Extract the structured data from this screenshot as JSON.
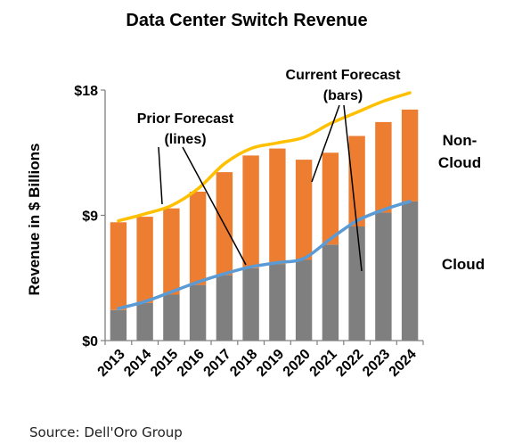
{
  "chart_data": {
    "type": "bar",
    "title": "Data Center Switch Revenue",
    "ylabel": "Revenue in $ Billions",
    "xlabel": "",
    "categories": [
      "2013",
      "2014",
      "2015",
      "2016",
      "2017",
      "2018",
      "2019",
      "2020",
      "2021",
      "2022",
      "2023",
      "2024"
    ],
    "ylim": [
      0,
      18
    ],
    "yticks": [
      {
        "value": 0,
        "label": "$0"
      },
      {
        "value": 9,
        "label": "$9"
      },
      {
        "value": 18,
        "label": "$18"
      }
    ],
    "stacked": true,
    "series": [
      {
        "name": "Cloud",
        "kind": "bar",
        "color": "#7f7f7f",
        "values": [
          2.2,
          2.7,
          3.3,
          4.0,
          4.7,
          5.2,
          5.5,
          5.8,
          6.9,
          8.2,
          9.2,
          10.0
        ]
      },
      {
        "name": "Non-Cloud",
        "kind": "bar",
        "color": "#ed7d31",
        "values": [
          6.3,
          6.2,
          6.2,
          6.7,
          7.4,
          8.1,
          8.3,
          7.2,
          6.6,
          6.5,
          6.5,
          6.6
        ]
      }
    ],
    "lines": [
      {
        "color": "#ffc000",
        "values": [
          8.6,
          9.1,
          9.7,
          10.9,
          12.7,
          13.8,
          14.2,
          14.6,
          15.6,
          16.4,
          17.2,
          17.8
        ]
      },
      {
        "color": "#5b9bd5",
        "values": [
          2.3,
          2.8,
          3.5,
          4.2,
          4.8,
          5.3,
          5.6,
          5.9,
          7.3,
          8.6,
          9.4,
          10.0
        ]
      }
    ],
    "annotations": {
      "prior_forecast": [
        "Prior Forecast",
        "(lines)"
      ],
      "current_forecast": [
        "Current Forecast",
        "(bars)"
      ],
      "noncloud": [
        "Non-",
        "Cloud"
      ],
      "cloud": "Cloud"
    },
    "source": "Source: Dell'Oro Group"
  }
}
